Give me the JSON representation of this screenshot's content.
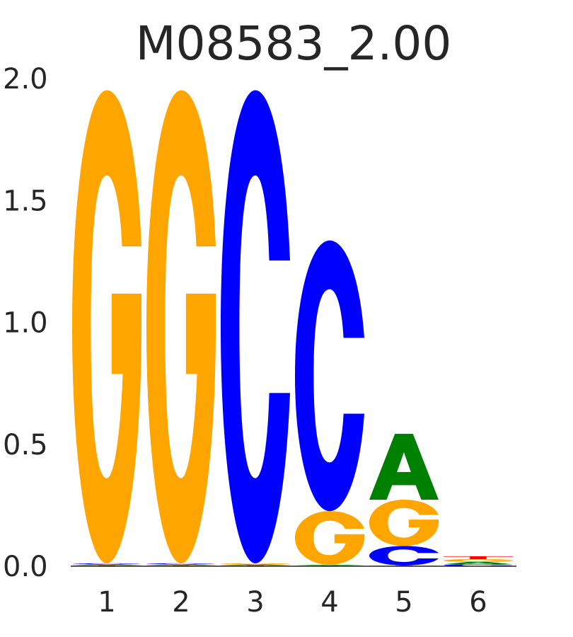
{
  "chart_data": {
    "type": "sequence-logo",
    "title": "M08583_2.00",
    "xlabel": "",
    "ylabel": "",
    "ylim": [
      0,
      2.0
    ],
    "y_ticks": [
      "0.0",
      "0.5",
      "1.0",
      "1.5",
      "2.0"
    ],
    "y_tick_values": [
      0,
      0.5,
      1.0,
      1.5,
      2.0
    ],
    "grid": false,
    "positions": [
      {
        "label": "1",
        "letters": [
          {
            "base": "T",
            "height": 0.004
          },
          {
            "base": "A",
            "height": 0.004
          },
          {
            "base": "C",
            "height": 0.004
          },
          {
            "base": "G",
            "height": 1.94
          }
        ]
      },
      {
        "label": "2",
        "letters": [
          {
            "base": "T",
            "height": 0.004
          },
          {
            "base": "A",
            "height": 0.004
          },
          {
            "base": "C",
            "height": 0.004
          },
          {
            "base": "G",
            "height": 1.94
          }
        ]
      },
      {
        "label": "3",
        "letters": [
          {
            "base": "T",
            "height": 0.004
          },
          {
            "base": "A",
            "height": 0.004
          },
          {
            "base": "G",
            "height": 0.004
          },
          {
            "base": "C",
            "height": 1.94
          }
        ]
      },
      {
        "label": "4",
        "letters": [
          {
            "base": "T",
            "height": 0.003
          },
          {
            "base": "A",
            "height": 0.003
          },
          {
            "base": "G",
            "height": 0.22
          },
          {
            "base": "C",
            "height": 1.11
          }
        ]
      },
      {
        "label": "5",
        "letters": [
          {
            "base": "T",
            "height": 0.003
          },
          {
            "base": "C",
            "height": 0.08
          },
          {
            "base": "G",
            "height": 0.19
          },
          {
            "base": "A",
            "height": 0.27
          }
        ]
      },
      {
        "label": "6",
        "letters": [
          {
            "base": "C",
            "height": 0.008
          },
          {
            "base": "A",
            "height": 0.01
          },
          {
            "base": "G",
            "height": 0.011
          },
          {
            "base": "T",
            "height": 0.012
          }
        ]
      }
    ],
    "colors": {
      "A": "#008000",
      "C": "#0000ff",
      "G": "#ffa500",
      "T": "#ff0000"
    }
  }
}
